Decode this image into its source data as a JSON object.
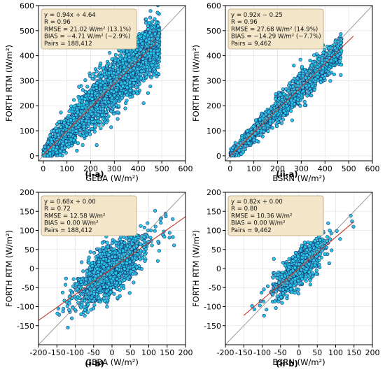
{
  "figure": {
    "panels": [
      {
        "id": "i-a",
        "caption": "(i-a)",
        "xlabel": "GEBA (W/m²)",
        "ylabel": "FORTH RTM (W/m²)",
        "stats": [
          "y = 0.94x + 4.64",
          "R = 0.96",
          "RMSE = 21.02 W/m² (13.1%)",
          "BIAS = −4.71 W/m² (−2.9%)",
          "Pairs = 188,412"
        ]
      },
      {
        "id": "ii-a",
        "caption": "(ii-a)",
        "xlabel": "BSRN (W/m²)",
        "ylabel": "FORTH RTM (W/m²)",
        "stats": [
          "y = 0.92x − 0.25",
          "R = 0.96",
          "RMSE = 27.68 W/m² (14.9%)",
          "BIAS = −14.29 W/m² (−7.7%)",
          "Pairs = 9,462"
        ]
      },
      {
        "id": "i-b",
        "caption": "(i-b)",
        "xlabel": "GEBA (W/m²)",
        "ylabel": "FORTH RTM (W/m²)",
        "stats": [
          "y = 0.68x + 0.00",
          "R = 0.72",
          "RMSE = 12.58 W/m²",
          "BIAS = 0.00 W/m²",
          "Pairs = 188,412"
        ]
      },
      {
        "id": "ii-b",
        "caption": "(ii-b)",
        "xlabel": "BSRN (W/m²)",
        "ylabel": "FORTH RTM (W/m²)",
        "stats": [
          "y = 0.82x + 0.00",
          "R = 0.80",
          "RMSE = 10.36 W/m²",
          "BIAS = 0.00 W/m²",
          "Pairs = 9,462"
        ]
      }
    ]
  },
  "colors": {
    "point_fill": "#27c6e6",
    "point_stroke": "#1a2a66",
    "fit_line": "#c0392b",
    "identity_line": "#888888",
    "stats_box_fill": "#f4e6c8",
    "stats_box_stroke": "#b9a27a",
    "grid": "#e6e6e6"
  },
  "chart_data": [
    {
      "type": "scatter",
      "panel": "i-a",
      "xlim": [
        -20,
        600
      ],
      "ylim": [
        -20,
        600
      ],
      "xticks": [
        0,
        100,
        200,
        300,
        400,
        500,
        600
      ],
      "yticks": [
        0,
        100,
        200,
        300,
        400,
        500,
        600
      ],
      "fit": {
        "slope": 0.94,
        "intercept": 4.64,
        "x_range": [
          0,
          480
        ]
      },
      "identity_line": true,
      "grid": true,
      "points_cloud": {
        "x_range": [
          0,
          490
        ],
        "slope": 0.94,
        "intercept": 4.64,
        "spread": 55,
        "shape": "wide"
      }
    },
    {
      "type": "scatter",
      "panel": "ii-a",
      "xlim": [
        -20,
        600
      ],
      "ylim": [
        -20,
        600
      ],
      "xticks": [
        0,
        100,
        200,
        300,
        400,
        500,
        600
      ],
      "yticks": [
        0,
        100,
        200,
        300,
        400,
        500,
        600
      ],
      "fit": {
        "slope": 0.92,
        "intercept": -0.25,
        "x_range": [
          0,
          520
        ]
      },
      "identity_line": true,
      "grid": true,
      "points_cloud": {
        "x_range": [
          0,
          470
        ],
        "slope": 0.92,
        "intercept": -0.25,
        "spread": 30,
        "shape": "narrow"
      }
    },
    {
      "type": "scatter",
      "panel": "i-b",
      "xlim": [
        -200,
        200
      ],
      "ylim": [
        -200,
        200
      ],
      "xticks": [
        -200,
        -150,
        -100,
        -50,
        0,
        50,
        100,
        150,
        200
      ],
      "yticks": [
        -150,
        -100,
        -50,
        0,
        50,
        100,
        150,
        200
      ],
      "fit": {
        "slope": 0.68,
        "intercept": 0.0,
        "x_range": [
          -200,
          200
        ]
      },
      "identity_line": true,
      "grid": true,
      "points_cloud": {
        "x_range": [
          -150,
          170
        ],
        "slope": 0.68,
        "intercept": 0.0,
        "spread": 30,
        "shape": "blob"
      }
    },
    {
      "type": "scatter",
      "panel": "ii-b",
      "xlim": [
        -200,
        200
      ],
      "ylim": [
        -200,
        200
      ],
      "xticks": [
        -200,
        -150,
        -100,
        -50,
        0,
        50,
        100,
        150,
        200
      ],
      "yticks": [
        -150,
        -100,
        -50,
        0,
        50,
        100,
        150,
        200
      ],
      "fit": {
        "slope": 0.82,
        "intercept": 0.0,
        "x_range": [
          -150,
          150
        ]
      },
      "identity_line": true,
      "grid": true,
      "points_cloud": {
        "x_range": [
          -130,
          150
        ],
        "slope": 0.82,
        "intercept": 0.0,
        "spread": 22,
        "shape": "blob"
      }
    }
  ]
}
